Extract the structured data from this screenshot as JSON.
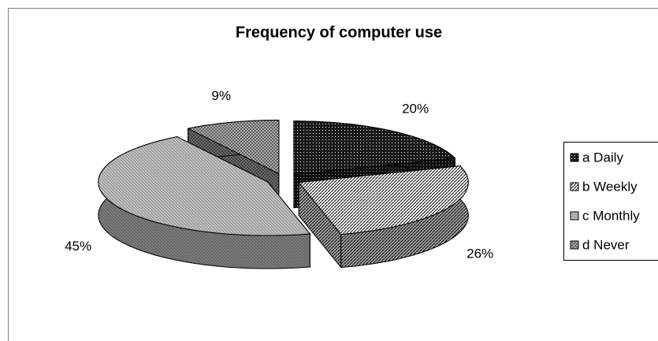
{
  "chart_data": {
    "type": "pie3d",
    "title": "Frequency of computer use",
    "categories": [
      "a Daily",
      "b Weekly",
      "c Monthly",
      "d Never"
    ],
    "values": [
      20,
      26,
      45,
      9
    ],
    "value_labels": [
      "20%",
      "26%",
      "45%",
      "9%"
    ],
    "colors": [
      "#1a1a1a",
      "#ffffff",
      "#a0a0a0",
      "#505050"
    ],
    "legend": "right"
  }
}
